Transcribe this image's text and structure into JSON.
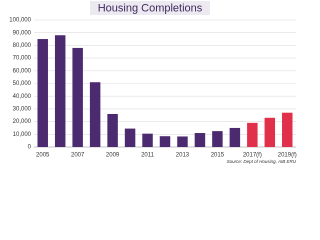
{
  "chart_data": {
    "type": "bar",
    "title": "Housing Completions",
    "source": "Source: Dept of Housing, AIB ERU",
    "categories": [
      "2005",
      null,
      "2007",
      null,
      "2009",
      null,
      "2011",
      null,
      "2013",
      null,
      "2015",
      null,
      "2017(f)",
      null,
      "2019(f)"
    ],
    "values": [
      85000,
      88000,
      78000,
      51000,
      26000,
      14500,
      10500,
      8500,
      8300,
      11000,
      12500,
      15000,
      19000,
      23000,
      27000
    ],
    "colors": [
      "#4b2a6f",
      "#4b2a6f",
      "#4b2a6f",
      "#4b2a6f",
      "#4b2a6f",
      "#4b2a6f",
      "#4b2a6f",
      "#4b2a6f",
      "#4b2a6f",
      "#4b2a6f",
      "#4b2a6f",
      "#4b2a6f",
      "#e0304a",
      "#e0304a",
      "#e0304a"
    ],
    "ylim": [
      0,
      100000
    ],
    "yticks": [
      0,
      {
        "value": 10000,
        "label": "10,000"
      },
      {
        "value": 20000,
        "label": "20,000"
      },
      {
        "value": 30000,
        "label": "30,000"
      },
      {
        "value": 40000,
        "label": "40,000"
      },
      {
        "value": 50000,
        "label": "50,000"
      },
      {
        "value": 60000,
        "label": "60,000"
      },
      {
        "value": 70000,
        "label": "70,000"
      },
      {
        "value": 80000,
        "label": "80,000"
      },
      {
        "value": 90000,
        "label": "90,000"
      },
      {
        "value": 100000,
        "label": "100,000"
      }
    ],
    "grid": true
  }
}
